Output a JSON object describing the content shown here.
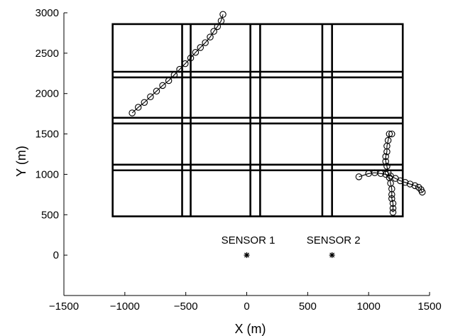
{
  "chart_data": {
    "type": "scatter",
    "title": "",
    "xlabel": "X (m)",
    "ylabel": "Y (m)",
    "xlim": [
      -1500,
      1500
    ],
    "ylim": [
      -500,
      3000
    ],
    "xticks": [
      -1500,
      -1000,
      -500,
      0,
      500,
      1000,
      1500
    ],
    "yticks": [
      0,
      500,
      1000,
      1500,
      2000,
      2500,
      3000
    ],
    "xtick_labels": [
      "−1500",
      "−1000",
      "−500",
      "0",
      "500",
      "1000",
      "1500"
    ],
    "ytick_labels": [
      "0",
      "500",
      "1000",
      "1500",
      "2000",
      "2500",
      "3000"
    ],
    "grid": false,
    "road_grid": {
      "outer": {
        "x": [
          -1100,
          1280
        ],
        "y": [
          480,
          2860
        ]
      },
      "vertical_roads": [
        [
          -530,
          -460
        ],
        [
          30,
          110
        ],
        [
          620,
          700
        ]
      ],
      "horizontal_roads": [
        [
          1050,
          1120
        ],
        [
          1630,
          1700
        ],
        [
          2200,
          2270
        ]
      ]
    },
    "sensors": [
      {
        "label": "SENSOR 1",
        "x": 0,
        "y": 0
      },
      {
        "label": "SENSOR 2",
        "x": 700,
        "y": 0
      }
    ],
    "series": [
      {
        "marker": "circle",
        "x": [
          -940,
          -890,
          -840,
          -790,
          -740,
          -690,
          -640,
          -595,
          -550,
          -505,
          -460,
          -420,
          -380,
          -340,
          -300,
          -270,
          -240,
          -210,
          -195
        ],
        "y": [
          1760,
          1830,
          1890,
          1960,
          2030,
          2100,
          2160,
          2230,
          2300,
          2370,
          2440,
          2510,
          2570,
          2630,
          2700,
          2770,
          2830,
          2900,
          2980
        ]
      },
      {
        "marker": "circle",
        "x": [
          1170,
          1160,
          1150,
          1150,
          1140,
          1140,
          1150,
          1160,
          1170,
          1180,
          1190,
          1190,
          1190,
          1200,
          1200,
          1200
        ],
        "y": [
          1500,
          1420,
          1350,
          1280,
          1220,
          1160,
          1100,
          1020,
          960,
          890,
          820,
          750,
          700,
          640,
          580,
          530
        ]
      },
      {
        "marker": "circle",
        "x": [
          920,
          1000,
          1050,
          1100,
          1140,
          1180,
          1220,
          1260,
          1300,
          1340,
          1380,
          1410,
          1430,
          1440
        ],
        "y": [
          970,
          1010,
          1020,
          1010,
          1000,
          980,
          950,
          920,
          900,
          880,
          860,
          840,
          810,
          780
        ]
      },
      {
        "marker": "circle",
        "x": [
          1190
        ],
        "y": [
          1500
        ]
      }
    ]
  }
}
